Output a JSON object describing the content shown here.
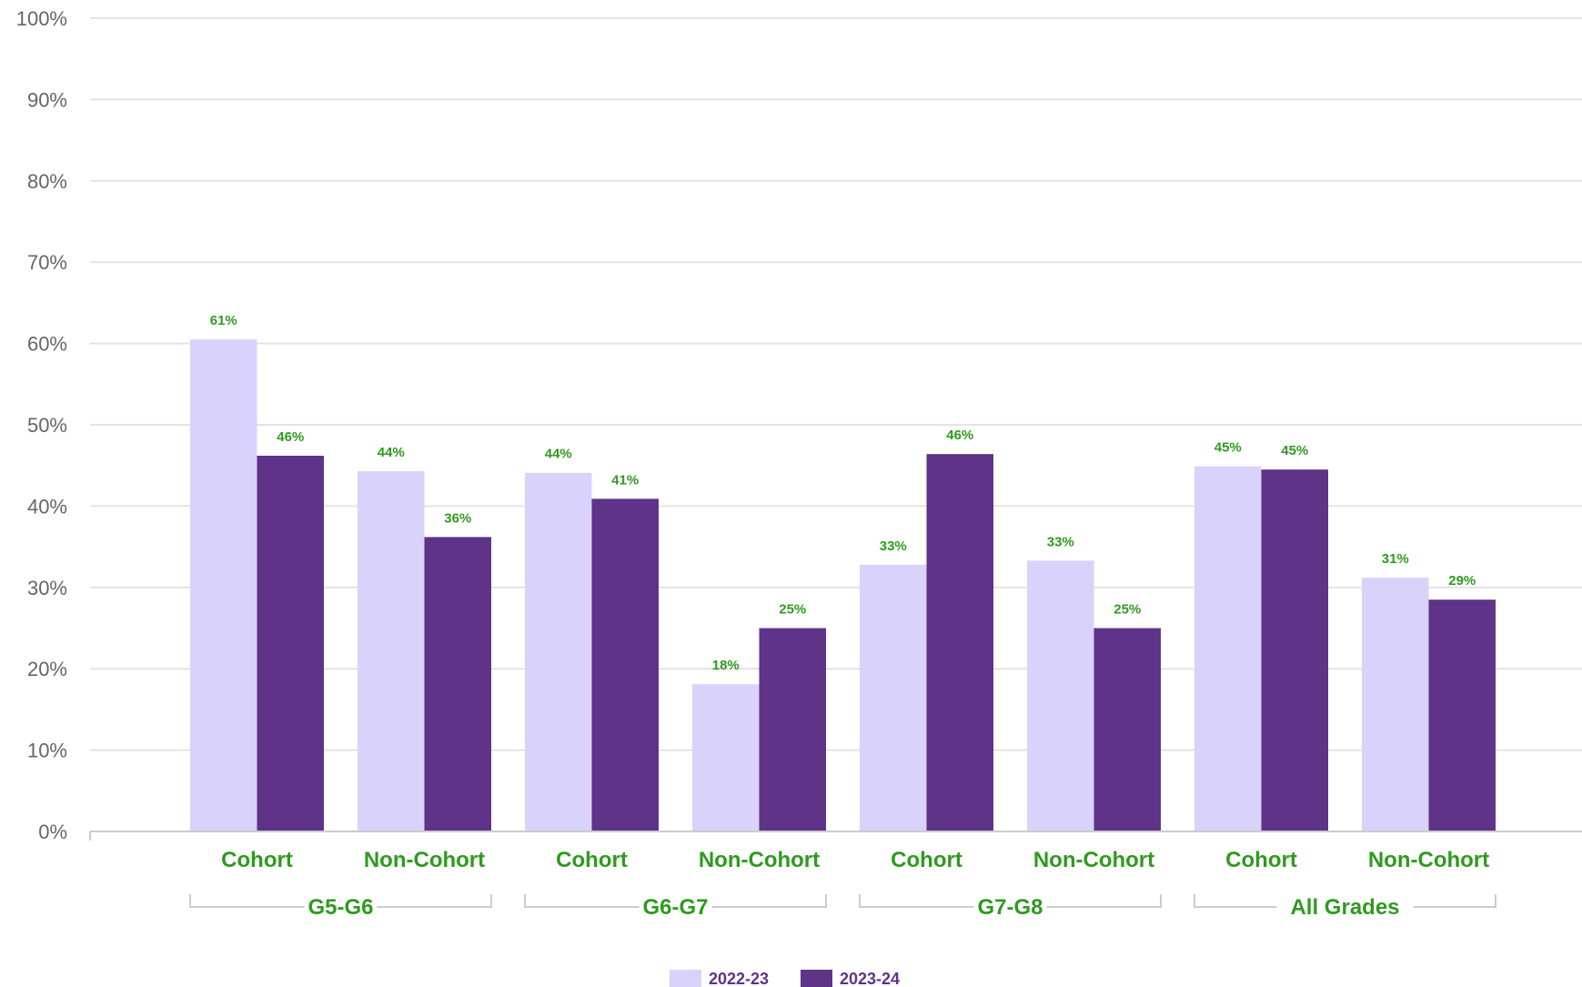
{
  "chart_data": {
    "type": "bar",
    "title": "",
    "xlabel": "",
    "ylabel": "",
    "ylim": [
      0,
      100
    ],
    "y_ticks": [
      "0%",
      "10%",
      "20%",
      "30%",
      "40%",
      "50%",
      "60%",
      "70%",
      "80%",
      "90%",
      "100%"
    ],
    "y_tick_values": [
      0,
      10,
      20,
      30,
      40,
      50,
      60,
      70,
      80,
      90,
      100
    ],
    "grid": true,
    "legend_position": "bottom-center",
    "groups": [
      {
        "label": "G5-G6",
        "categories": [
          "Cohort",
          "Non-Cohort"
        ]
      },
      {
        "label": "G6-G7",
        "categories": [
          "Cohort",
          "Non-Cohort"
        ]
      },
      {
        "label": "G7-G8",
        "categories": [
          "Cohort",
          "Non-Cohort"
        ]
      },
      {
        "label": "All Grades",
        "categories": [
          "Cohort",
          "Non-Cohort"
        ]
      }
    ],
    "categories": [
      "Cohort",
      "Non-Cohort",
      "Cohort",
      "Non-Cohort",
      "Cohort",
      "Non-Cohort",
      "Cohort",
      "Non-Cohort"
    ],
    "series": [
      {
        "name": "2022-23",
        "color": "#d9d2fb",
        "values": [
          60.5,
          44.3,
          44.1,
          18.1,
          32.8,
          33.3,
          44.9,
          31.2
        ],
        "labels": [
          "61%",
          "44%",
          "44%",
          "18%",
          "33%",
          "33%",
          "45%",
          "31%"
        ]
      },
      {
        "name": "2023-24",
        "color": "#5e3388",
        "values": [
          46.2,
          36.2,
          40.9,
          25.0,
          46.4,
          25.0,
          44.5,
          28.5
        ],
        "labels": [
          "46%",
          "36%",
          "41%",
          "25%",
          "46%",
          "25%",
          "45%",
          "29%"
        ]
      }
    ],
    "label_color": "#2f9a1f"
  }
}
